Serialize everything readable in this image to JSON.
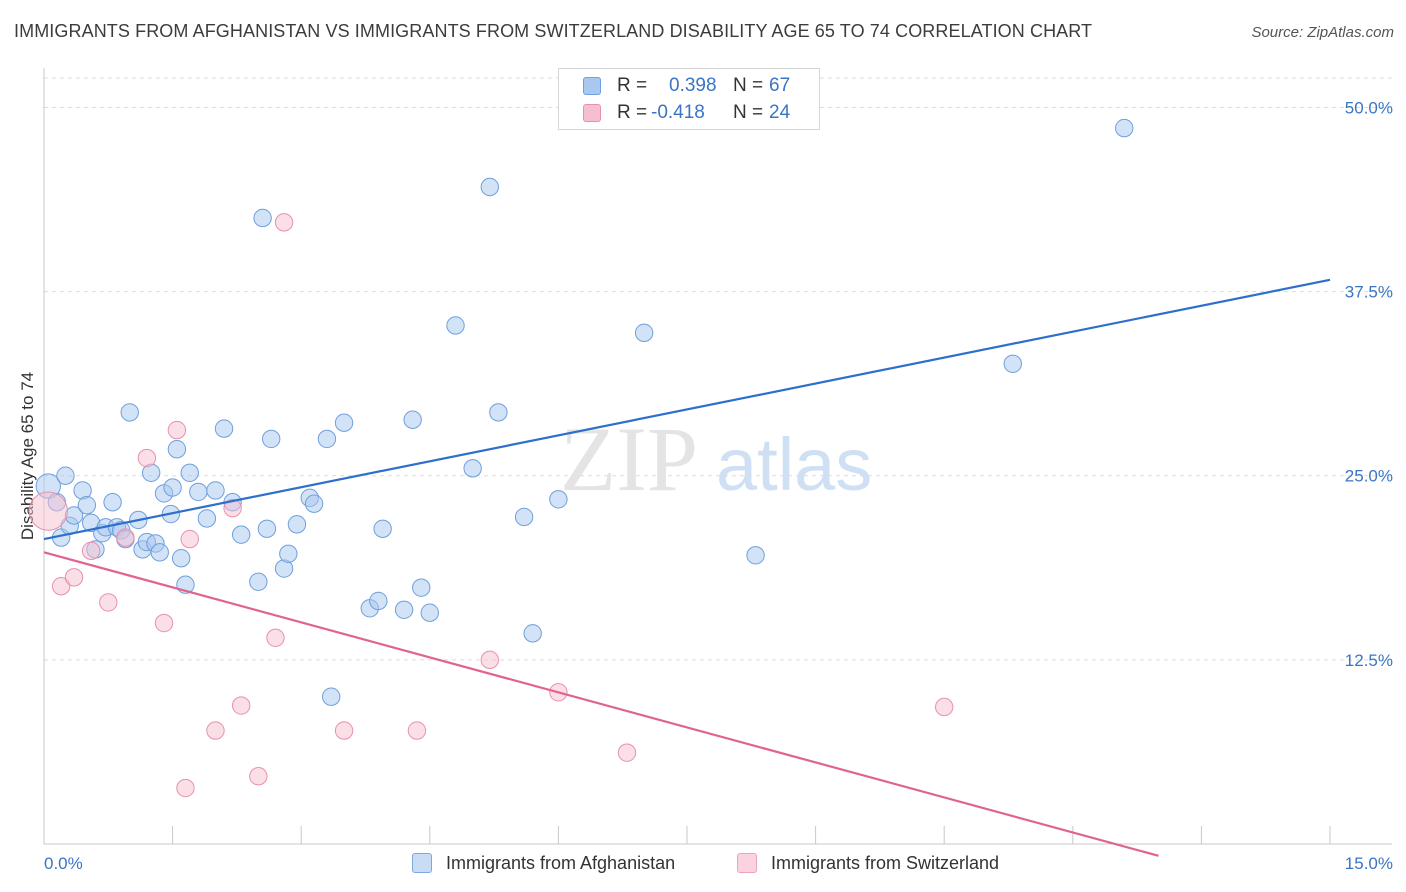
{
  "title": "IMMIGRANTS FROM AFGHANISTAN VS IMMIGRANTS FROM SWITZERLAND DISABILITY AGE 65 TO 74 CORRELATION CHART",
  "source": "Source: ZipAtlas.com",
  "watermark": {
    "zip": "ZIP",
    "atlas": "atlas"
  },
  "legend": {
    "rows": [
      {
        "r_label": "R =",
        "r_value": "0.398",
        "n_label": "N =",
        "n_value": "67",
        "color": "#a8c8f0",
        "stroke": "#6f9fdc"
      },
      {
        "r_label": "R =",
        "r_value": "-0.418",
        "n_label": "N =",
        "n_value": "24",
        "color": "#f6bfd0",
        "stroke": "#e890ad"
      }
    ]
  },
  "bottom_legend": [
    {
      "label": "Immigrants from Afghanistan",
      "color": "#c9dcf5",
      "stroke": "#7ea8e0"
    },
    {
      "label": "Immigrants from Switzerland",
      "color": "#fad3df",
      "stroke": "#eda3bc"
    }
  ],
  "chart_data": {
    "type": "scatter",
    "title": "IMMIGRANTS FROM AFGHANISTAN VS IMMIGRANTS FROM SWITZERLAND DISABILITY AGE 65 TO 74 CORRELATION CHART",
    "xlabel": "",
    "ylabel": "Disability Age 65 to 74",
    "xlim": [
      0,
      15
    ],
    "ylim": [
      0,
      52
    ],
    "x_tick_labels": [
      {
        "value": 0,
        "label": "0.0%"
      },
      {
        "value": 15,
        "label": "15.0%"
      }
    ],
    "x_minor_ticks": [
      0,
      1.5,
      3,
      4.5,
      6,
      7.5,
      9,
      10.5,
      12,
      13.5,
      15
    ],
    "y_ticks": [
      {
        "value": 12.5,
        "label": "12.5%"
      },
      {
        "value": 25,
        "label": "25.0%"
      },
      {
        "value": 37.5,
        "label": "37.5%"
      },
      {
        "value": 50,
        "label": "50.0%"
      }
    ],
    "grid": true,
    "series": [
      {
        "name": "Immigrants from Afghanistan",
        "color": "#a8c8f0",
        "stroke": "#6f9fdc",
        "line_color": "#2e6fcc",
        "trend": {
          "x": [
            0,
            15
          ],
          "y": [
            20.7,
            38.3
          ]
        },
        "points": [
          [
            0.05,
            24.3,
            14
          ],
          [
            0.15,
            23.2,
            10
          ],
          [
            0.2,
            20.8,
            10
          ],
          [
            0.25,
            25.0,
            10
          ],
          [
            0.3,
            21.6,
            10
          ],
          [
            0.35,
            22.3,
            10
          ],
          [
            0.45,
            24.0,
            10
          ],
          [
            0.5,
            23.0,
            10
          ],
          [
            0.55,
            21.8,
            10
          ],
          [
            0.6,
            20.0,
            10
          ],
          [
            0.68,
            21.1,
            10
          ],
          [
            0.72,
            21.5,
            10
          ],
          [
            0.8,
            23.2,
            10
          ],
          [
            0.85,
            21.5,
            10
          ],
          [
            0.9,
            21.3,
            10
          ],
          [
            0.95,
            20.7,
            10
          ],
          [
            1.0,
            29.3,
            10
          ],
          [
            1.1,
            22.0,
            10
          ],
          [
            1.15,
            20.0,
            10
          ],
          [
            1.2,
            20.5,
            10
          ],
          [
            1.25,
            25.2,
            10
          ],
          [
            1.3,
            20.4,
            10
          ],
          [
            1.35,
            19.8,
            10
          ],
          [
            1.4,
            23.8,
            10
          ],
          [
            1.48,
            22.4,
            10
          ],
          [
            1.5,
            24.2,
            10
          ],
          [
            1.55,
            26.8,
            10
          ],
          [
            1.6,
            19.4,
            10
          ],
          [
            1.65,
            17.6,
            10
          ],
          [
            1.7,
            25.2,
            10
          ],
          [
            1.8,
            23.9,
            10
          ],
          [
            1.9,
            22.1,
            10
          ],
          [
            2.0,
            24.0,
            10
          ],
          [
            2.1,
            28.2,
            10
          ],
          [
            2.2,
            23.2,
            10
          ],
          [
            2.3,
            21.0,
            10
          ],
          [
            2.5,
            17.8,
            10
          ],
          [
            2.55,
            42.5,
            10
          ],
          [
            2.6,
            21.4,
            10
          ],
          [
            2.65,
            27.5,
            10
          ],
          [
            2.8,
            18.7,
            10
          ],
          [
            2.85,
            19.7,
            10
          ],
          [
            2.95,
            21.7,
            10
          ],
          [
            3.1,
            23.5,
            10
          ],
          [
            3.15,
            23.1,
            10
          ],
          [
            3.3,
            27.5,
            10
          ],
          [
            3.35,
            10.0,
            10
          ],
          [
            3.5,
            28.6,
            10
          ],
          [
            3.8,
            16.0,
            10
          ],
          [
            3.9,
            16.5,
            10
          ],
          [
            3.95,
            21.4,
            10
          ],
          [
            4.2,
            15.9,
            10
          ],
          [
            4.3,
            28.8,
            10
          ],
          [
            4.4,
            17.4,
            10
          ],
          [
            4.5,
            15.7,
            10
          ],
          [
            4.8,
            35.2,
            10
          ],
          [
            5.0,
            25.5,
            10
          ],
          [
            5.2,
            44.6,
            10
          ],
          [
            5.3,
            29.3,
            10
          ],
          [
            5.6,
            22.2,
            10
          ],
          [
            5.7,
            14.3,
            10
          ],
          [
            6.0,
            23.4,
            10
          ],
          [
            7.0,
            34.7,
            10
          ],
          [
            8.3,
            19.6,
            10
          ],
          [
            11.3,
            32.6,
            10
          ],
          [
            12.6,
            48.6,
            10
          ]
        ]
      },
      {
        "name": "Immigrants from Switzerland",
        "color": "#f6bfd0",
        "stroke": "#e890ad",
        "line_color": "#e0648f",
        "trend": {
          "x": [
            0,
            13.0
          ],
          "y": [
            19.8,
            -0.8
          ]
        },
        "points": [
          [
            0.05,
            22.6,
            22
          ],
          [
            0.2,
            17.5,
            10
          ],
          [
            0.35,
            18.1,
            10
          ],
          [
            0.55,
            19.9,
            10
          ],
          [
            0.75,
            16.4,
            10
          ],
          [
            0.95,
            20.8,
            10
          ],
          [
            1.2,
            26.2,
            10
          ],
          [
            1.4,
            15.0,
            10
          ],
          [
            1.55,
            28.1,
            10
          ],
          [
            1.65,
            3.8,
            10
          ],
          [
            1.7,
            20.7,
            10
          ],
          [
            2.0,
            7.7,
            10
          ],
          [
            2.2,
            22.8,
            10
          ],
          [
            2.3,
            9.4,
            10
          ],
          [
            2.5,
            4.6,
            10
          ],
          [
            2.7,
            14.0,
            10
          ],
          [
            2.8,
            42.2,
            10
          ],
          [
            3.5,
            7.7,
            10
          ],
          [
            4.35,
            7.7,
            10
          ],
          [
            5.2,
            12.5,
            10
          ],
          [
            6.0,
            10.3,
            10
          ],
          [
            6.8,
            6.2,
            10
          ],
          [
            10.5,
            9.3,
            10
          ]
        ]
      }
    ]
  }
}
